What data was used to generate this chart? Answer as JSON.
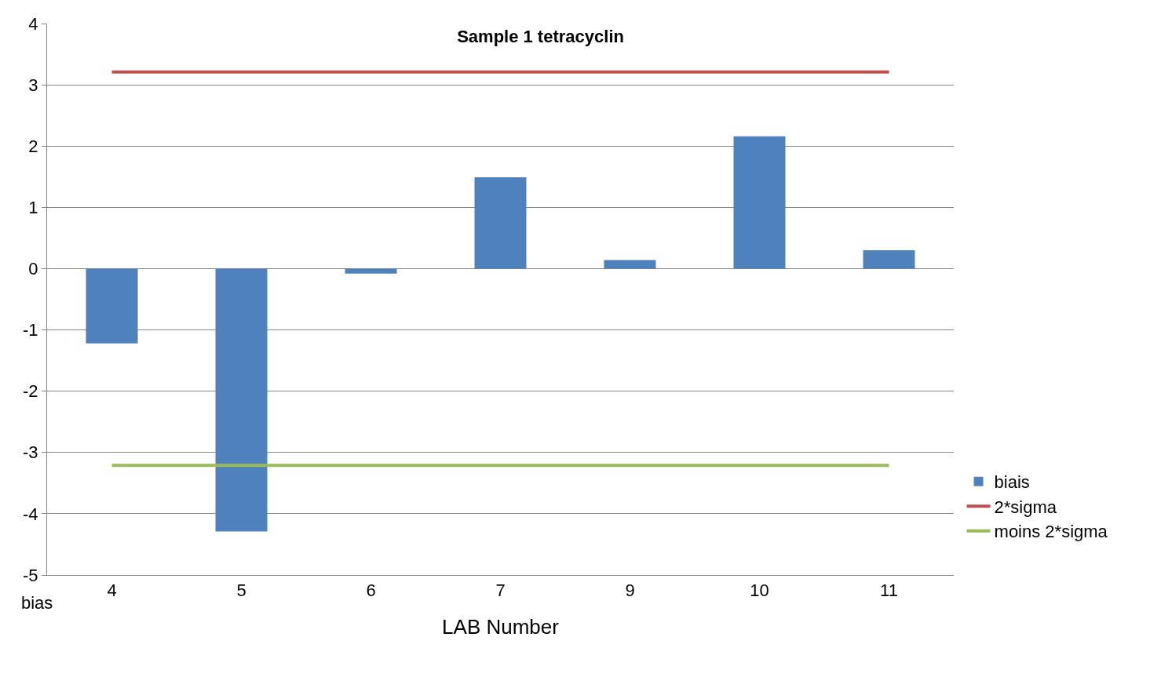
{
  "chart_data": {
    "type": "bar",
    "title": "Sample 1 tetracyclin",
    "xlabel": "LAB Number",
    "ylabel": "bias",
    "categories": [
      "4",
      "5",
      "6",
      "7",
      "9",
      "10",
      "11"
    ],
    "series": [
      {
        "name": "biais",
        "color": "#4f81bd",
        "values": [
          -1.22,
          -4.29,
          -0.08,
          1.49,
          0.14,
          2.16,
          0.3
        ]
      },
      {
        "name": "2*sigma",
        "type": "line",
        "color": "#c0504d",
        "values": [
          3.21,
          3.21,
          3.21,
          3.21,
          3.21,
          3.21,
          3.21
        ]
      },
      {
        "name": "moins 2*sigma",
        "type": "line",
        "color": "#9bbb59",
        "values": [
          -3.21,
          -3.21,
          -3.21,
          -3.21,
          -3.21,
          -3.21,
          -3.21
        ]
      }
    ],
    "ylim": [
      -5,
      4
    ],
    "yticks": [
      -5,
      -4,
      -3,
      -2,
      -1,
      0,
      1,
      2,
      3,
      4
    ],
    "grid": "y",
    "legend": "right",
    "marker": "none"
  }
}
